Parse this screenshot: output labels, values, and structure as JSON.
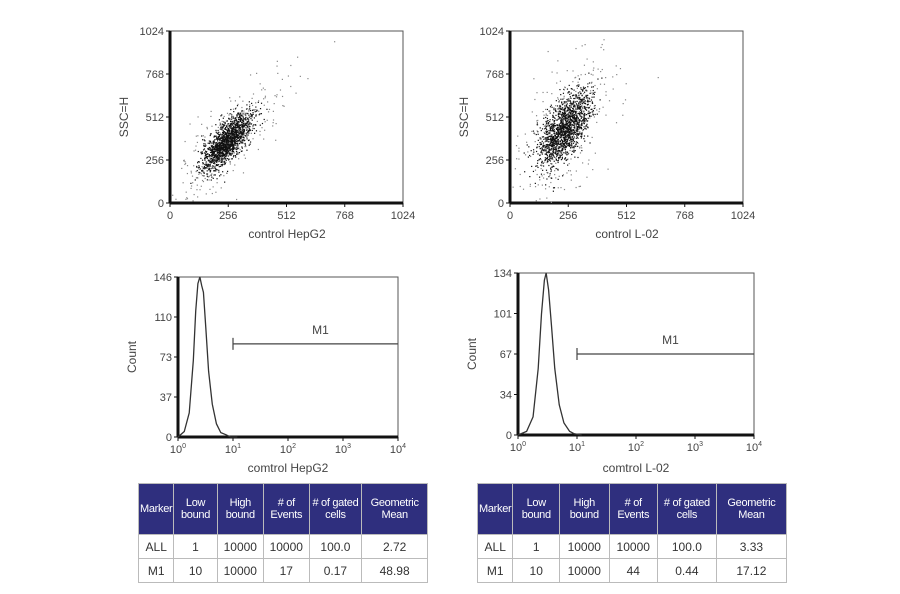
{
  "chart_data": [
    {
      "type": "scatter",
      "xlabel": "control HepG2",
      "ylabel": "SSC=H",
      "xlim": [
        0,
        1024
      ],
      "ylim": [
        0,
        1024
      ],
      "xticks": [
        "0",
        "256",
        "512",
        "768",
        "1024"
      ],
      "yticks": [
        "0",
        "256",
        "512",
        "768",
        "1024"
      ],
      "cluster": {
        "center": [
          250,
          370
        ],
        "spread": [
          55,
          85
        ],
        "correlation": 0.75,
        "color": "#111111"
      }
    },
    {
      "type": "scatter",
      "xlabel": "control  L-02",
      "ylabel": "SSC=H",
      "xlim": [
        0,
        1024
      ],
      "ylim": [
        0,
        1024
      ],
      "xticks": [
        "0",
        "256",
        "512",
        "768",
        "1024"
      ],
      "yticks": [
        "0",
        "256",
        "512",
        "768",
        "1024"
      ],
      "cluster": {
        "center": [
          235,
          440
        ],
        "spread": [
          55,
          110
        ],
        "correlation": 0.6,
        "color": "#111111"
      }
    },
    {
      "type": "line",
      "xlabel": "comtrol HepG2",
      "ylabel": "Count",
      "xscale": "log",
      "xlim": [
        1,
        10000
      ],
      "ylim": [
        0,
        146
      ],
      "yticks": [
        "0",
        "37",
        "73",
        "110",
        "146"
      ],
      "xticks": [
        "10^0",
        "10^1",
        "10^2",
        "10^3",
        "10^4"
      ],
      "x": [
        1,
        1.3,
        1.6,
        1.9,
        2.1,
        2.3,
        2.5,
        2.7,
        2.9,
        3.2,
        3.6,
        4.2,
        5,
        6,
        7.5,
        9,
        12
      ],
      "y": [
        0,
        5,
        22,
        70,
        115,
        140,
        146,
        138,
        132,
        100,
        60,
        30,
        12,
        4,
        2,
        0,
        0
      ],
      "marker": {
        "name": "M1",
        "from": 10,
        "to": 10000,
        "level": 85
      }
    },
    {
      "type": "line",
      "xlabel": "comtrol L-02",
      "ylabel": "Count",
      "xscale": "log",
      "xlim": [
        1,
        10000
      ],
      "ylim": [
        0,
        134
      ],
      "yticks": [
        "0",
        "34",
        "67",
        "101",
        "134"
      ],
      "xticks": [
        "10^0",
        "10^1",
        "10^2",
        "10^3",
        "10^4"
      ],
      "x": [
        1,
        1.4,
        1.8,
        2.2,
        2.5,
        2.8,
        3.0,
        3.3,
        3.7,
        4.2,
        5,
        6,
        7.5,
        9,
        12
      ],
      "y": [
        0,
        3,
        15,
        55,
        100,
        128,
        134,
        120,
        90,
        55,
        25,
        10,
        3,
        1,
        0
      ],
      "marker": {
        "name": "M1",
        "from": 10,
        "to": 10000,
        "level": 67
      }
    }
  ],
  "tables": [
    {
      "headers": [
        "Marker",
        "Low bound",
        "High bound",
        "# of Events",
        "# of gated cells",
        "Geometric Mean"
      ],
      "rows": [
        [
          "ALL",
          "1",
          "10000",
          "10000",
          "100.0",
          "2.72"
        ],
        [
          "M1",
          "10",
          "10000",
          "17",
          "0.17",
          "48.98"
        ]
      ]
    },
    {
      "headers": [
        "Marker",
        "Low bound",
        "High bound",
        "# of Events",
        "# of gated cells",
        "Geometric Mean"
      ],
      "rows": [
        [
          "ALL",
          "1",
          "10000",
          "10000",
          "100.0",
          "3.33"
        ],
        [
          "M1",
          "10",
          "10000",
          "44",
          "0.44",
          "17.12"
        ]
      ]
    }
  ],
  "colors": {
    "table_header": "#2f2f7e",
    "axis": "#222222"
  }
}
